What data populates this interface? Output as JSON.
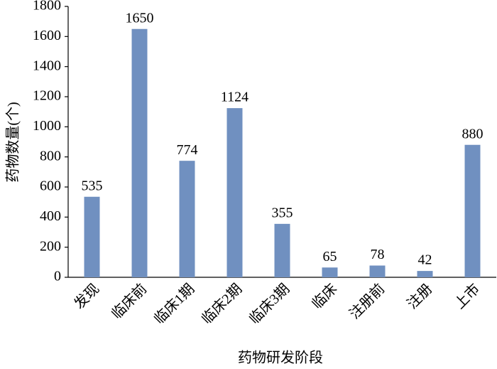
{
  "chart_data": {
    "type": "bar",
    "y_label": "药物数量(个)",
    "x_label": "药物研发阶段",
    "categories": [
      "发现",
      "临床前",
      "临床1期",
      "临床2期",
      "临床3期",
      "临床",
      "注册前",
      "注册",
      "上市"
    ],
    "values": [
      535,
      1650,
      774,
      1124,
      355,
      65,
      78,
      42,
      880
    ],
    "color": "#7090c0",
    "ylim": [
      0,
      1800
    ],
    "yticks": [
      0,
      200,
      400,
      600,
      800,
      1000,
      1200,
      1400,
      1600,
      1800
    ],
    "grid": false
  }
}
